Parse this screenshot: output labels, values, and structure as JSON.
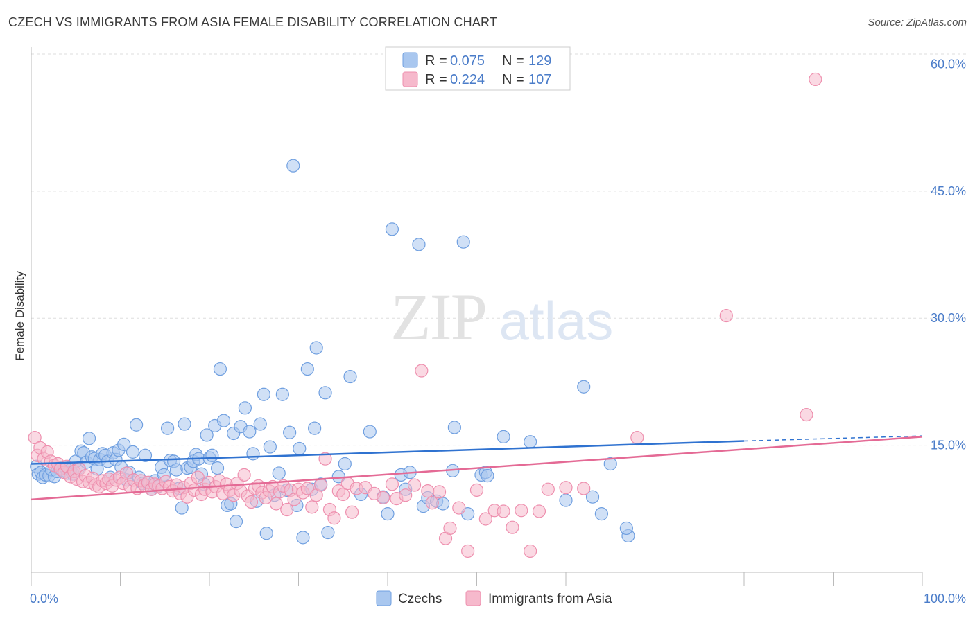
{
  "title": "CZECH VS IMMIGRANTS FROM ASIA FEMALE DISABILITY CORRELATION CHART",
  "source": "Source: ZipAtlas.com",
  "watermark": {
    "zip": "ZIP",
    "atlas": "atlas"
  },
  "colors": {
    "blue_fill": "#a9c7ef",
    "blue_stroke": "#6f9fe0",
    "blue_line": "#2f72d0",
    "pink_fill": "#f6b9cc",
    "pink_stroke": "#ee8fae",
    "pink_line": "#e46a95",
    "grid": "#dddddd",
    "tick_text": "#4a7cc9"
  },
  "legend": {
    "r_label": "R =",
    "n_label": "N =",
    "czechs_r": "0.075",
    "czechs_n": "129",
    "asia_r": "0.224",
    "asia_n": "107"
  },
  "chart_data": {
    "type": "scatter",
    "title": "CZECH VS IMMIGRANTS FROM ASIA FEMALE DISABILITY CORRELATION CHART",
    "xlabel": "",
    "ylabel": "Female Disability",
    "xlim": [
      0,
      100
    ],
    "ylim": [
      0,
      62
    ],
    "x_tick_labels": [
      "0.0%",
      "100.0%"
    ],
    "y_ticks": [
      15,
      30,
      45,
      60
    ],
    "y_tick_labels": [
      "15.0%",
      "30.0%",
      "45.0%",
      "60.0%"
    ],
    "grid": "horizontal dashed",
    "legend_position": "top-center",
    "series": [
      {
        "name": "Czechs",
        "color": "#a9c7ef",
        "trend": {
          "x": [
            0,
            80,
            100
          ],
          "y": [
            12.8,
            15.5,
            16.1
          ],
          "dashed_from": 80
        },
        "points": [
          [
            0.6,
            12.5
          ],
          [
            0.8,
            11.6
          ],
          [
            1.1,
            11.8
          ],
          [
            1.3,
            11.2
          ],
          [
            1.6,
            11.5
          ],
          [
            2.0,
            11.4
          ],
          [
            2.3,
            12.1
          ],
          [
            2.6,
            11.3
          ],
          [
            2.9,
            11.9
          ],
          [
            3.2,
            12.3
          ],
          [
            3.5,
            12.0
          ],
          [
            3.8,
            12.4
          ],
          [
            4.1,
            11.7
          ],
          [
            4.4,
            12.1
          ],
          [
            4.7,
            11.6
          ],
          [
            5.0,
            13.1
          ],
          [
            5.3,
            12.3
          ],
          [
            5.6,
            14.3
          ],
          [
            5.9,
            14.1
          ],
          [
            6.2,
            13.0
          ],
          [
            6.5,
            15.8
          ],
          [
            6.8,
            13.6
          ],
          [
            7.1,
            13.4
          ],
          [
            7.4,
            12.2
          ],
          [
            7.7,
            13.3
          ],
          [
            8.0,
            14.0
          ],
          [
            8.3,
            13.8
          ],
          [
            8.6,
            13.1
          ],
          [
            8.9,
            11.2
          ],
          [
            9.2,
            14.1
          ],
          [
            9.5,
            13.3
          ],
          [
            9.8,
            14.4
          ],
          [
            10.1,
            12.4
          ],
          [
            10.4,
            15.1
          ],
          [
            10.7,
            10.9
          ],
          [
            11.0,
            11.8
          ],
          [
            11.4,
            14.2
          ],
          [
            11.8,
            17.4
          ],
          [
            12.1,
            11.2
          ],
          [
            12.5,
            10.5
          ],
          [
            12.8,
            13.8
          ],
          [
            13.2,
            10.6
          ],
          [
            13.5,
            9.8
          ],
          [
            13.9,
            10.8
          ],
          [
            14.2,
            10.1
          ],
          [
            14.6,
            12.4
          ],
          [
            14.9,
            11.5
          ],
          [
            15.3,
            17.0
          ],
          [
            15.6,
            13.2
          ],
          [
            16.0,
            13.1
          ],
          [
            16.3,
            12.1
          ],
          [
            16.6,
            9.9
          ],
          [
            16.9,
            7.6
          ],
          [
            17.2,
            17.5
          ],
          [
            17.5,
            12.3
          ],
          [
            17.9,
            12.4
          ],
          [
            18.2,
            13.1
          ],
          [
            18.5,
            13.9
          ],
          [
            18.8,
            13.4
          ],
          [
            19.1,
            11.6
          ],
          [
            19.4,
            10.4
          ],
          [
            19.7,
            16.2
          ],
          [
            20.0,
            13.5
          ],
          [
            20.3,
            13.8
          ],
          [
            20.6,
            17.3
          ],
          [
            20.9,
            12.3
          ],
          [
            21.2,
            24.0
          ],
          [
            21.6,
            17.9
          ],
          [
            22.0,
            7.9
          ],
          [
            22.4,
            8.1
          ],
          [
            22.7,
            16.4
          ],
          [
            23.0,
            6.0
          ],
          [
            23.5,
            17.2
          ],
          [
            24.0,
            19.4
          ],
          [
            24.5,
            16.6
          ],
          [
            24.9,
            14.0
          ],
          [
            25.3,
            8.4
          ],
          [
            25.7,
            17.5
          ],
          [
            26.1,
            21.0
          ],
          [
            26.4,
            4.6
          ],
          [
            26.8,
            14.8
          ],
          [
            27.3,
            9.1
          ],
          [
            27.8,
            11.7
          ],
          [
            28.2,
            21.0
          ],
          [
            28.7,
            9.7
          ],
          [
            29.0,
            16.5
          ],
          [
            29.4,
            48.0
          ],
          [
            29.8,
            7.9
          ],
          [
            30.1,
            14.6
          ],
          [
            30.5,
            4.1
          ],
          [
            31.0,
            24.0
          ],
          [
            31.5,
            9.8
          ],
          [
            31.8,
            17.0
          ],
          [
            32.0,
            26.5
          ],
          [
            32.5,
            10.4
          ],
          [
            33.0,
            21.2
          ],
          [
            33.3,
            4.7
          ],
          [
            34.5,
            11.3
          ],
          [
            35.2,
            12.8
          ],
          [
            35.8,
            23.1
          ],
          [
            37.0,
            9.2
          ],
          [
            38.0,
            16.6
          ],
          [
            39.5,
            8.9
          ],
          [
            40.0,
            6.9
          ],
          [
            40.5,
            40.5
          ],
          [
            41.5,
            11.5
          ],
          [
            42.0,
            9.8
          ],
          [
            42.5,
            11.8
          ],
          [
            43.5,
            38.7
          ],
          [
            44.0,
            7.8
          ],
          [
            44.5,
            8.8
          ],
          [
            45.5,
            8.4
          ],
          [
            46.2,
            8.1
          ],
          [
            47.5,
            17.1
          ],
          [
            47.3,
            12.0
          ],
          [
            48.5,
            39.0
          ],
          [
            49.0,
            6.9
          ],
          [
            50.5,
            11.5
          ],
          [
            51.0,
            11.8
          ],
          [
            51.2,
            11.4
          ],
          [
            53.0,
            16.0
          ],
          [
            56.0,
            15.4
          ],
          [
            60.0,
            8.5
          ],
          [
            62.0,
            21.9
          ],
          [
            63.0,
            8.9
          ],
          [
            64.0,
            6.9
          ],
          [
            65.0,
            12.8
          ],
          [
            67.0,
            4.3
          ],
          [
            66.8,
            5.2
          ]
        ]
      },
      {
        "name": "Immigrants from Asia",
        "color": "#f6b9cc",
        "trend": {
          "x": [
            0,
            100
          ],
          "y": [
            8.6,
            16.0
          ]
        },
        "points": [
          [
            0.4,
            15.9
          ],
          [
            0.7,
            13.8
          ],
          [
            1.0,
            14.7
          ],
          [
            1.4,
            13.4
          ],
          [
            1.8,
            14.2
          ],
          [
            2.2,
            13.1
          ],
          [
            2.6,
            12.6
          ],
          [
            3.0,
            12.8
          ],
          [
            3.3,
            12.2
          ],
          [
            3.7,
            11.8
          ],
          [
            4.0,
            12.5
          ],
          [
            4.4,
            11.3
          ],
          [
            4.8,
            11.9
          ],
          [
            5.1,
            11.0
          ],
          [
            5.4,
            12.2
          ],
          [
            5.8,
            10.7
          ],
          [
            6.1,
            11.4
          ],
          [
            6.5,
            10.6
          ],
          [
            6.9,
            11.1
          ],
          [
            7.2,
            10.3
          ],
          [
            7.6,
            10.1
          ],
          [
            8.0,
            10.8
          ],
          [
            8.4,
            10.5
          ],
          [
            8.7,
            11.0
          ],
          [
            9.1,
            10.2
          ],
          [
            9.5,
            10.9
          ],
          [
            9.9,
            11.2
          ],
          [
            10.3,
            10.5
          ],
          [
            10.7,
            11.7
          ],
          [
            11.1,
            10.1
          ],
          [
            11.5,
            10.9
          ],
          [
            11.9,
            9.9
          ],
          [
            12.3,
            10.8
          ],
          [
            12.7,
            10.3
          ],
          [
            13.1,
            10.6
          ],
          [
            13.5,
            9.8
          ],
          [
            13.9,
            10.4
          ],
          [
            14.3,
            10.2
          ],
          [
            14.7,
            9.9
          ],
          [
            15.1,
            10.7
          ],
          [
            15.5,
            10.1
          ],
          [
            15.9,
            9.6
          ],
          [
            16.3,
            10.3
          ],
          [
            16.7,
            9.3
          ],
          [
            17.1,
            10.0
          ],
          [
            17.5,
            8.9
          ],
          [
            17.9,
            10.5
          ],
          [
            18.3,
            9.7
          ],
          [
            18.7,
            11.2
          ],
          [
            19.1,
            9.2
          ],
          [
            19.5,
            9.8
          ],
          [
            19.9,
            10.6
          ],
          [
            20.3,
            9.5
          ],
          [
            20.7,
            10.1
          ],
          [
            21.1,
            10.8
          ],
          [
            21.5,
            9.3
          ],
          [
            21.9,
            10.4
          ],
          [
            22.3,
            9.7
          ],
          [
            22.7,
            9.1
          ],
          [
            23.1,
            10.5
          ],
          [
            23.5,
            9.6
          ],
          [
            23.9,
            11.5
          ],
          [
            24.3,
            9.0
          ],
          [
            24.7,
            8.3
          ],
          [
            25.1,
            9.9
          ],
          [
            25.5,
            10.2
          ],
          [
            25.9,
            9.4
          ],
          [
            26.3,
            8.8
          ],
          [
            26.7,
            9.6
          ],
          [
            27.1,
            10.1
          ],
          [
            27.5,
            8.1
          ],
          [
            27.9,
            9.5
          ],
          [
            28.3,
            10.2
          ],
          [
            28.7,
            7.4
          ],
          [
            29.1,
            9.7
          ],
          [
            29.5,
            8.6
          ],
          [
            30.0,
            9.8
          ],
          [
            30.5,
            9.4
          ],
          [
            31.0,
            9.9
          ],
          [
            31.5,
            7.7
          ],
          [
            32.0,
            9.1
          ],
          [
            32.5,
            10.3
          ],
          [
            33.0,
            13.4
          ],
          [
            33.5,
            7.4
          ],
          [
            34.0,
            6.4
          ],
          [
            34.5,
            9.6
          ],
          [
            35.0,
            9.2
          ],
          [
            35.5,
            10.5
          ],
          [
            36.0,
            7.1
          ],
          [
            36.5,
            9.9
          ],
          [
            37.5,
            10.0
          ],
          [
            38.5,
            9.3
          ],
          [
            39.5,
            8.8
          ],
          [
            40.5,
            10.4
          ],
          [
            41.0,
            8.7
          ],
          [
            42.0,
            9.1
          ],
          [
            43.0,
            10.3
          ],
          [
            43.8,
            23.8
          ],
          [
            44.5,
            9.6
          ],
          [
            45.0,
            8.2
          ],
          [
            45.8,
            9.5
          ],
          [
            46.5,
            4.0
          ],
          [
            47.0,
            5.2
          ],
          [
            48.0,
            7.6
          ],
          [
            49.0,
            2.5
          ],
          [
            50.0,
            9.7
          ],
          [
            51.0,
            6.3
          ],
          [
            52.0,
            7.3
          ],
          [
            53.0,
            7.2
          ],
          [
            54.0,
            5.3
          ],
          [
            55.0,
            7.3
          ],
          [
            56.0,
            2.5
          ],
          [
            57.0,
            7.2
          ],
          [
            58.0,
            9.8
          ],
          [
            60.0,
            10.0
          ],
          [
            62.0,
            9.9
          ],
          [
            68.0,
            15.9
          ],
          [
            78.0,
            30.3
          ],
          [
            87.0,
            18.6
          ],
          [
            88.0,
            58.2
          ]
        ]
      }
    ]
  },
  "bottom_legend": {
    "czechs": "Czechs",
    "asia": "Immigrants from Asia"
  }
}
